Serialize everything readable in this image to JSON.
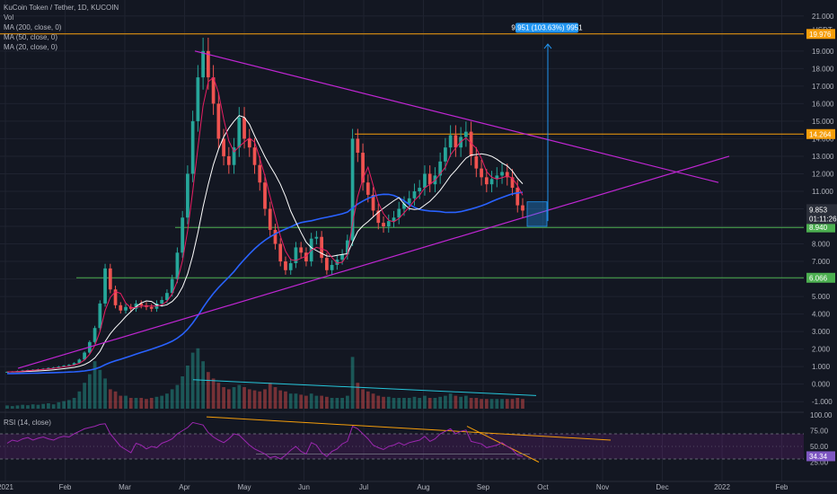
{
  "legend": {
    "title": "KuCoin Token / Tether, 1D, KUCOIN",
    "vol": "Vol",
    "ma200": "MA (200, close, 0)",
    "ma50": "MA (50, close, 0)",
    "ma20": "MA (20, close, 0)",
    "rsi": "RSI (14, close)"
  },
  "colors": {
    "background": "#131722",
    "up": "#26a69a",
    "down": "#ef5350",
    "ma200": "#2962ff",
    "ma50": "#ffffff",
    "ma20": "#e91e63",
    "trendline": "#c026d3",
    "resistance": "#f59e0b",
    "support": "#4caf50",
    "measure": "#2196f3",
    "rsi": "#9c27b0",
    "volume_trend": "#26c6da"
  },
  "chart_data": {
    "type": "candlestick",
    "symbol": "KuCoin Token / Tether",
    "interval": "1D",
    "exchange": "KUCOIN",
    "currency_label": "USDT",
    "price_ticks": [
      "21.000",
      "20.000",
      "19.000",
      "18.000",
      "17.000",
      "16.000",
      "15.000",
      "14.000",
      "13.000",
      "12.000",
      "11.000",
      "10.000",
      "9.000",
      "8.000",
      "7.000",
      "6.000",
      "5.000",
      "4.000",
      "3.000",
      "2.000",
      "1.000",
      "0.000",
      "-1.000"
    ],
    "price_levels": [
      21,
      20,
      19,
      18,
      17,
      16,
      15,
      14,
      13,
      12,
      11,
      10,
      9,
      8,
      7,
      6,
      5,
      4,
      3,
      2,
      1,
      0,
      -1
    ],
    "x_ticks": [
      "2021",
      "Feb",
      "Mar",
      "Apr",
      "May",
      "Jun",
      "Jul",
      "Aug",
      "Sep",
      "Oct",
      "Nov",
      "Dec",
      "2022",
      "Feb"
    ],
    "x_tick_months": [
      0,
      1,
      2,
      3,
      4,
      5,
      6,
      7,
      8,
      9,
      10,
      11,
      12,
      13
    ],
    "rsi_ticks": [
      "100.00",
      "75.00",
      "50.00",
      "25.00"
    ],
    "rsi_levels": [
      100,
      75,
      50,
      25
    ],
    "horizontal_levels": [
      {
        "label": "19.976",
        "price": 19.976,
        "color": "#f59e0b"
      },
      {
        "label": "14.264",
        "price": 14.264,
        "color": "#f59e0b"
      },
      {
        "label": "8.940",
        "price": 8.94,
        "color": "#4caf50"
      },
      {
        "label": "6.066",
        "price": 6.066,
        "color": "#4caf50"
      }
    ],
    "last_price": {
      "label": "9.853",
      "price": 9.853,
      "countdown": "01:11:26"
    },
    "rsi_last": {
      "label": "34.34",
      "value": 34.34
    },
    "measure_label": "9.951 (103.63%) 9951",
    "closes": [
      0.7,
      0.72,
      0.75,
      0.78,
      0.8,
      0.82,
      0.85,
      0.88,
      0.92,
      0.95,
      1.0,
      1.05,
      1.1,
      1.2,
      1.4,
      1.8,
      2.4,
      3.2,
      4.6,
      6.6,
      5.4,
      4.5,
      4.2,
      4.4,
      4.3,
      4.6,
      4.5,
      4.4,
      4.3,
      4.6,
      4.8,
      5.2,
      6.0,
      7.5,
      9.5,
      12.0,
      15.0,
      17.5,
      19.0,
      17.5,
      16.0,
      14.0,
      13.0,
      12.5,
      13.5,
      15.2,
      14.0,
      13.5,
      12.5,
      11.5,
      10.0,
      8.8,
      8.0,
      7.0,
      6.5,
      6.9,
      7.8,
      7.5,
      7.0,
      8.3,
      8.4,
      7.2,
      6.5,
      6.8,
      7.1,
      7.4,
      8.2,
      14.0,
      13.2,
      11.5,
      10.8,
      9.9,
      9.2,
      9.0,
      9.3,
      9.5,
      10.0,
      10.3,
      10.6,
      11.0,
      11.2,
      12.0,
      11.4,
      11.9,
      12.7,
      13.5,
      14.2,
      13.5,
      14.1,
      14.4,
      13.0,
      12.3,
      11.8,
      11.4,
      11.7,
      11.9,
      12.1,
      11.8,
      11.2,
      10.2,
      9.9
    ],
    "volumes": [
      0.15,
      0.12,
      0.15,
      0.18,
      0.16,
      0.2,
      0.18,
      0.22,
      0.25,
      0.2,
      0.3,
      0.35,
      0.4,
      0.5,
      0.8,
      1.2,
      1.6,
      2.2,
      1.8,
      1.4,
      0.9,
      0.8,
      0.6,
      0.6,
      0.5,
      0.5,
      0.5,
      0.45,
      0.5,
      0.55,
      0.6,
      0.7,
      0.9,
      1.1,
      1.5,
      2.0,
      2.6,
      2.8,
      2.2,
      1.7,
      1.4,
      1.2,
      1.0,
      0.9,
      1.0,
      1.1,
      1.0,
      0.9,
      0.85,
      0.8,
      0.9,
      1.2,
      1.0,
      0.85,
      0.8,
      0.7,
      0.7,
      0.65,
      0.6,
      0.7,
      0.6,
      0.6,
      0.55,
      0.5,
      0.5,
      0.5,
      0.6,
      2.4,
      1.2,
      0.9,
      0.8,
      0.7,
      0.6,
      0.55,
      0.55,
      0.5,
      0.5,
      0.5,
      0.5,
      0.55,
      0.5,
      0.6,
      0.5,
      0.5,
      0.55,
      0.6,
      0.7,
      0.6,
      0.55,
      0.6,
      0.5,
      0.5,
      0.45,
      0.45,
      0.45,
      0.45,
      0.45,
      0.45,
      0.45,
      0.5,
      0.45
    ],
    "rsi": [
      55,
      60,
      58,
      62,
      64,
      60,
      63,
      65,
      62,
      60,
      64,
      66,
      65,
      70,
      74,
      78,
      80,
      82,
      85,
      86,
      70,
      60,
      50,
      45,
      40,
      55,
      52,
      46,
      50,
      48,
      55,
      58,
      62,
      70,
      75,
      80,
      88,
      86,
      84,
      72,
      65,
      60,
      56,
      62,
      70,
      68,
      60,
      52,
      46,
      42,
      38,
      32,
      34,
      30,
      36,
      44,
      50,
      42,
      38,
      56,
      52,
      40,
      34,
      42,
      46,
      54,
      58,
      82,
      78,
      70,
      62,
      52,
      48,
      45,
      50,
      52,
      56,
      52,
      56,
      58,
      60,
      66,
      58,
      62,
      70,
      74,
      78,
      70,
      74,
      76,
      58,
      56,
      54,
      48,
      50,
      52,
      56,
      50,
      45,
      36,
      34
    ]
  }
}
